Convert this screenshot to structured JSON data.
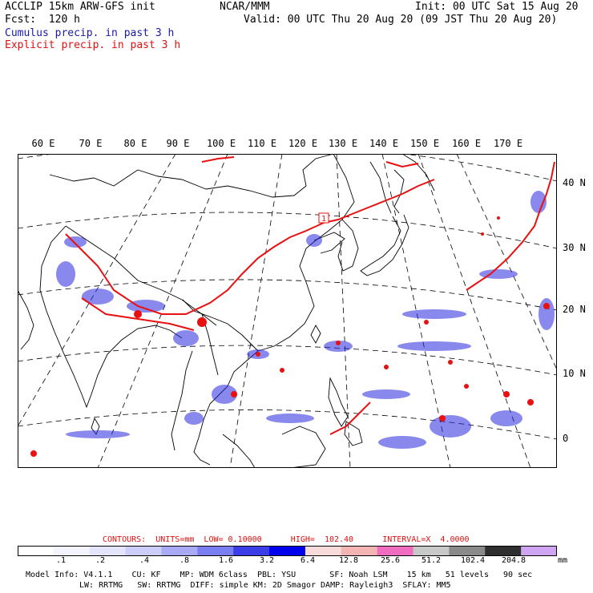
{
  "header": {
    "title_left": "ACCLIP 15km ARW-GFS init",
    "title_center": "NCAR/MMM",
    "init": "Init: 00 UTC Sat 15 Aug 20",
    "fcst": "Fcst:  120 h",
    "valid": "Valid: 00 UTC Thu 20 Aug 20 (09 JST Thu 20 Aug 20)",
    "legend_cumulus": "Cumulus precip. in past 3 h",
    "legend_explicit": "Explicit precip. in past 3 h"
  },
  "map": {
    "lon_labels": [
      "60 E",
      "70 E",
      "80 E",
      "90 E",
      "100 E",
      "110 E",
      "120 E",
      "130 E",
      "140 E",
      "150 E",
      "160 E",
      "170 E"
    ],
    "lat_labels": [
      "40 N",
      "30 N",
      "20 N",
      "10 N",
      "0"
    ],
    "marker_label": "1",
    "colors": {
      "cumulus": "#2a2ae0",
      "explicit": "#e81010",
      "coast": "#000000",
      "grid": "#000000"
    }
  },
  "contours_line": {
    "text": "CONTOURS:  UNITS=mm  LOW= 0.10000      HIGH=  102.40      INTERVAL=X  4.0000"
  },
  "colorbar": {
    "labels": [
      ".1",
      ".2",
      ".4",
      ".8",
      "1.6",
      "3.2",
      "6.4",
      "12.8",
      "25.6",
      "51.2",
      "102.4",
      "204.8"
    ],
    "unit": "mm",
    "colors": [
      "#ffffff",
      "#f4f4ff",
      "#e4e4fc",
      "#cccdfa",
      "#a8aaf6",
      "#7b7ef0",
      "#3b3de6",
      "#0000ee",
      "#f9dada",
      "#f4b4b4",
      "#f06cc0",
      "#c8c8c8",
      "#8a8a8a",
      "#2e2e2e",
      "#cfa4f2"
    ]
  },
  "footer": {
    "line1": "Model Info: V4.1.1    CU: KF    MP: WDM 6class  PBL: YSU       SF: Noah LSM    15 km   51 levels   90 sec",
    "line2": "LW: RRTMG   SW: RRTMG  DIFF: simple KM: 2D Smagor DAMP: Rayleigh3  SFLAY: MM5"
  }
}
